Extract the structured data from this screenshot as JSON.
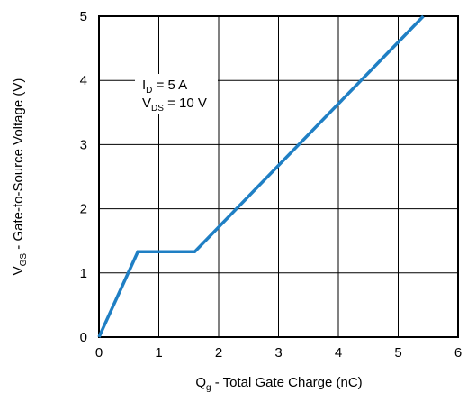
{
  "chart_data": {
    "type": "line",
    "title": "",
    "xlabel": {
      "main": "Q",
      "sub": "g",
      "rest": " - Total Gate Charge (nC)"
    },
    "ylabel": {
      "main": "V",
      "sub": "GS",
      "rest": " - Gate-to-Source Voltage (V)"
    },
    "xlim": [
      0,
      6
    ],
    "ylim": [
      0,
      5
    ],
    "x_ticks": [
      "0",
      "1",
      "2",
      "3",
      "4",
      "5",
      "6"
    ],
    "y_ticks": [
      "0",
      "1",
      "2",
      "3",
      "4",
      "5"
    ],
    "grid": true,
    "line_color": "#1f7fc4",
    "annotations": [
      {
        "main": "I",
        "sub": "D",
        "rest": " = 5 A"
      },
      {
        "main": "V",
        "sub": "DS",
        "rest": " = 10 V"
      }
    ],
    "series": [
      {
        "points": [
          {
            "x": 0,
            "y": 0
          },
          {
            "x": 0.65,
            "y": 1.33
          },
          {
            "x": 1.6,
            "y": 1.33
          },
          {
            "x": 5.42,
            "y": 5.0
          }
        ]
      }
    ]
  }
}
